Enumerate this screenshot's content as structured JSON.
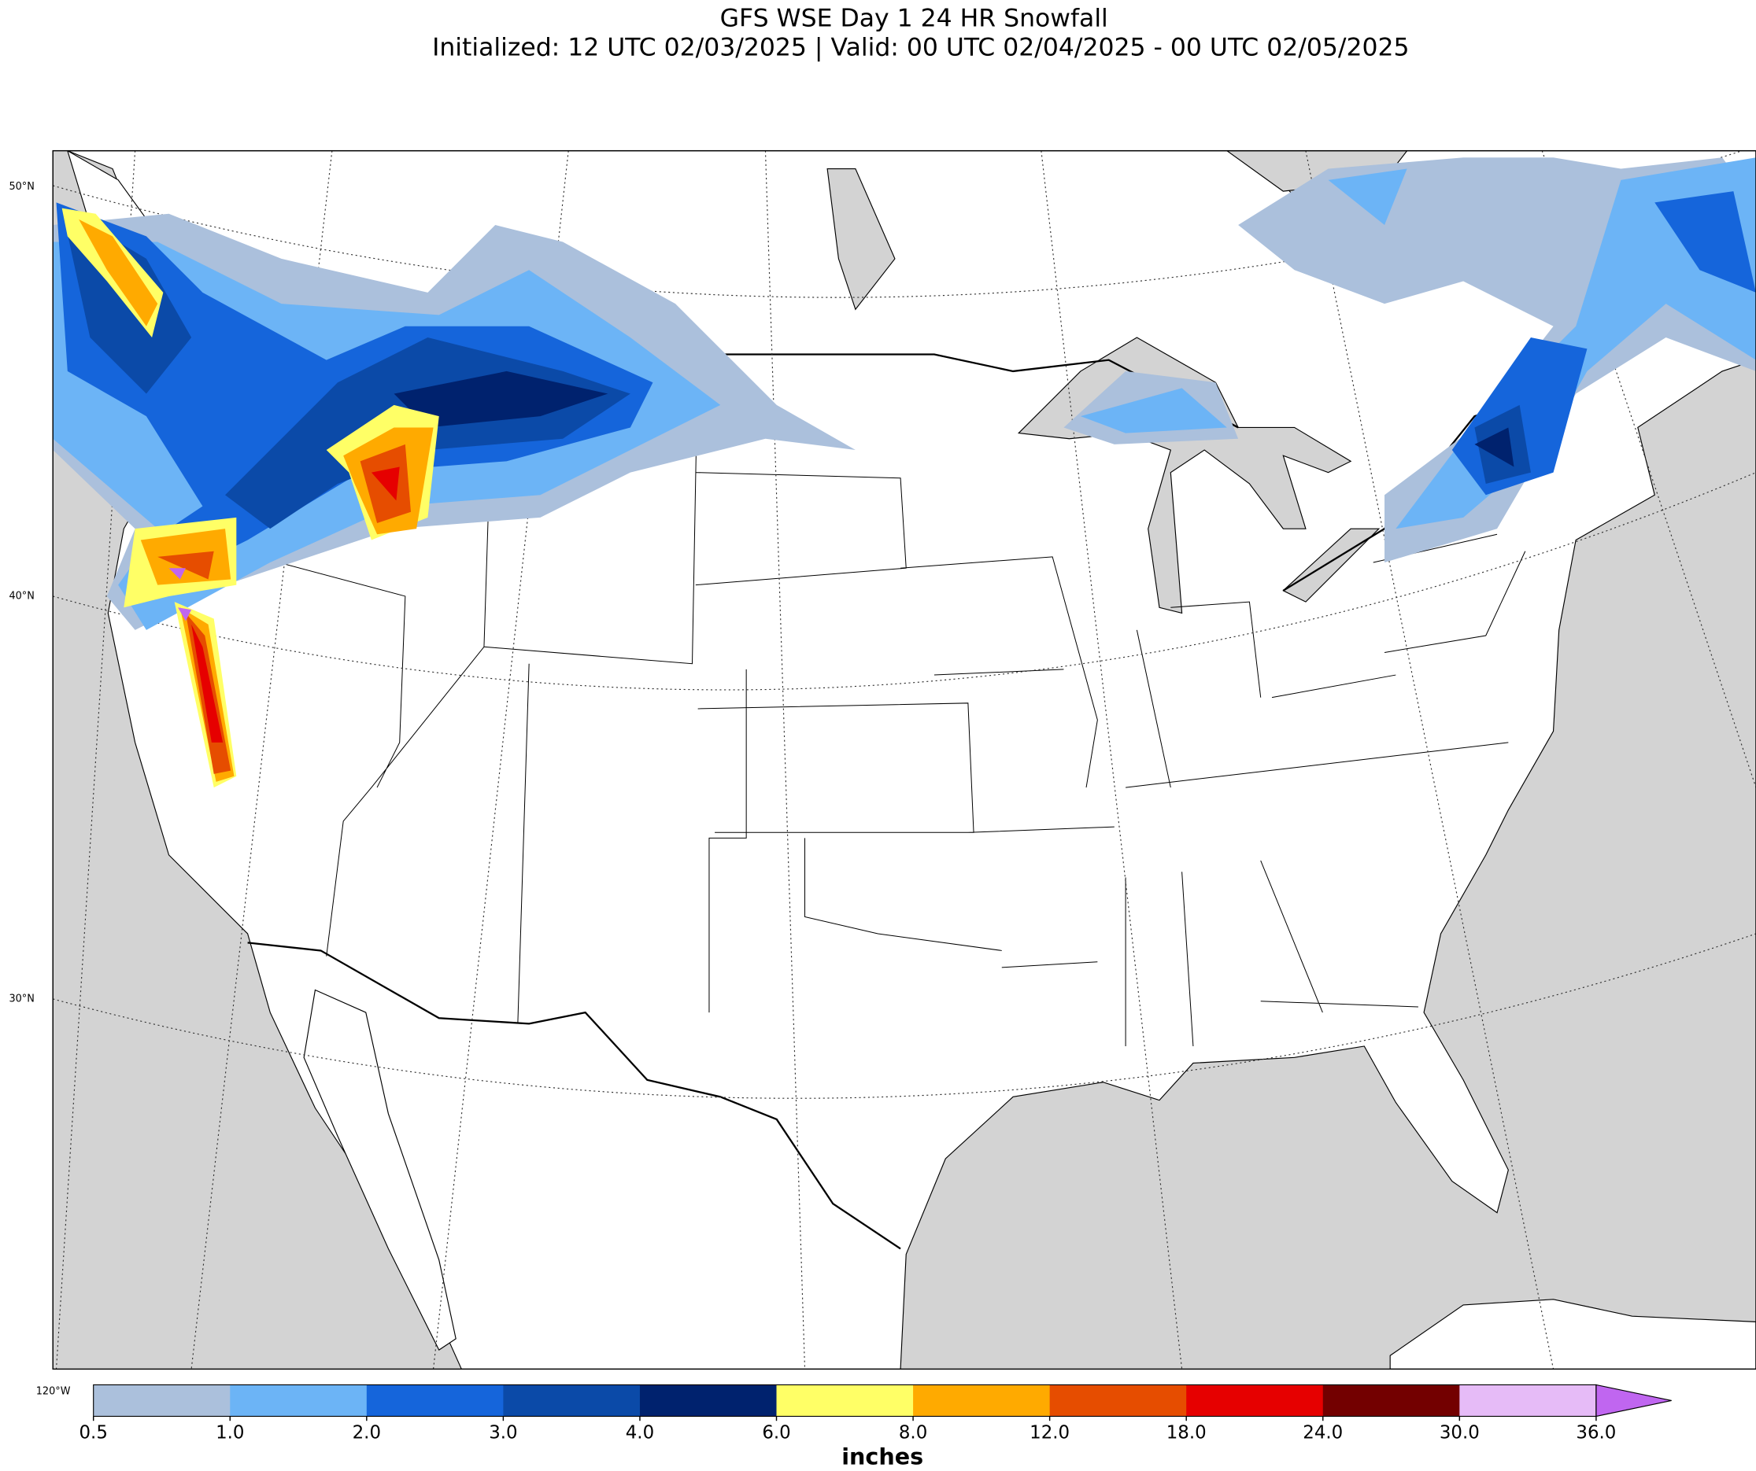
{
  "header": {
    "title": "GFS WSE Day 1 24 HR Snowfall",
    "subtitle": "Initialized: 12 UTC 02/03/2025 | Valid: 00 UTC 02/04/2025 - 00 UTC 02/05/2025"
  },
  "map": {
    "lat_labels": [
      "50°N",
      "40°N",
      "30°N"
    ],
    "lon_label": "120°W"
  },
  "colorbar": {
    "label": "inches",
    "ticks": [
      {
        "value": 0.5,
        "label": "0.5"
      },
      {
        "value": 1,
        "label": "1.0"
      },
      {
        "value": 2,
        "label": "2.0"
      },
      {
        "value": 3,
        "label": "3.0"
      },
      {
        "value": 4,
        "label": "4.0"
      },
      {
        "value": 6,
        "label": "6.0"
      },
      {
        "value": 8,
        "label": "8.0"
      },
      {
        "value": 12,
        "label": "12.0"
      },
      {
        "value": 18,
        "label": "18.0"
      },
      {
        "value": 24,
        "label": "24.0"
      },
      {
        "value": 30,
        "label": "30.0"
      },
      {
        "value": 36,
        "label": "36.0"
      }
    ],
    "colors": [
      "#abc0dc",
      "#6cb4f6",
      "#1565db",
      "#0b4aa8",
      "#00226e",
      "#ffff66",
      "#ffaa00",
      "#e64d00",
      "#e60000",
      "#730000",
      "#e6bbf7"
    ],
    "over_color": "#c066f0"
  }
}
